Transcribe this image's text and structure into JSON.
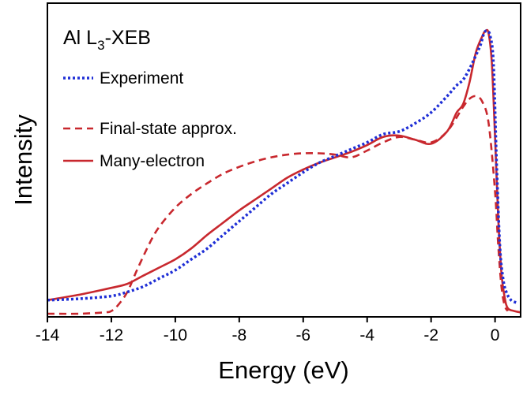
{
  "chart_data": {
    "type": "line",
    "title": "",
    "annotation": {
      "prefix": "Al L",
      "subscript": "3",
      "suffix": "-XEB"
    },
    "xlabel": "Energy (eV)",
    "ylabel": "Intensity",
    "xlim": [
      -14,
      0.8
    ],
    "ylim": [
      0,
      1.1
    ],
    "xticks": [
      -14,
      -12,
      -10,
      -8,
      -6,
      -4,
      -2,
      0
    ],
    "xtick_labels": [
      "-14",
      "-12",
      "-10",
      "-8",
      "-6",
      "-4",
      "-2",
      "0"
    ],
    "show_yticks": false,
    "grid": false,
    "legend_position": "top-left",
    "series": [
      {
        "name": "Experiment",
        "style": "dotted",
        "color": "#1f2fd6",
        "x": [
          -14,
          -13,
          -12,
          -11.5,
          -11,
          -10.5,
          -10,
          -9.5,
          -9,
          -8.5,
          -8,
          -7.5,
          -7,
          -6.5,
          -6,
          -5.5,
          -5,
          -4.5,
          -4,
          -3.5,
          -3,
          -2.5,
          -2,
          -1.5,
          -1.2,
          -1,
          -0.8,
          -0.6,
          -0.45,
          -0.35,
          -0.25,
          -0.15,
          -0.05,
          0.05,
          0.15,
          0.25,
          0.35,
          0.5,
          0.7
        ],
        "y": [
          0.05,
          0.055,
          0.065,
          0.08,
          0.1,
          0.13,
          0.16,
          0.2,
          0.24,
          0.29,
          0.34,
          0.39,
          0.44,
          0.48,
          0.52,
          0.555,
          0.58,
          0.605,
          0.63,
          0.66,
          0.67,
          0.7,
          0.74,
          0.8,
          0.84,
          0.86,
          0.9,
          0.95,
          0.99,
          1.03,
          1.04,
          1.02,
          0.92,
          0.55,
          0.25,
          0.13,
          0.08,
          0.05,
          0.04
        ]
      },
      {
        "name": "Final-state approx.",
        "style": "dashed",
        "color": "#c8282e",
        "x": [
          -14,
          -13,
          -12.2,
          -12,
          -11.8,
          -11.5,
          -11.2,
          -10.8,
          -10.5,
          -10,
          -9.5,
          -9,
          -8.5,
          -8,
          -7.5,
          -7,
          -6.5,
          -6,
          -5.5,
          -5,
          -4.5,
          -4,
          -3.5,
          -3,
          -2.5,
          -2,
          -1.5,
          -1,
          -0.8,
          -0.6,
          -0.4,
          -0.2,
          0,
          0.1,
          0.2,
          0.3,
          0.4
        ],
        "y": [
          0,
          0,
          0.005,
          0.01,
          0.03,
          0.08,
          0.16,
          0.26,
          0.32,
          0.39,
          0.44,
          0.48,
          0.515,
          0.54,
          0.56,
          0.575,
          0.585,
          0.59,
          0.59,
          0.585,
          0.575,
          0.6,
          0.63,
          0.65,
          0.64,
          0.63,
          0.67,
          0.76,
          0.79,
          0.8,
          0.78,
          0.7,
          0.45,
          0.25,
          0.1,
          0.03,
          0.01
        ]
      },
      {
        "name": "Many-electron",
        "style": "solid",
        "color": "#c8282e",
        "x": [
          -14,
          -13,
          -12,
          -11.5,
          -11,
          -10.5,
          -10,
          -9.5,
          -9,
          -8.5,
          -8,
          -7.5,
          -7,
          -6.5,
          -6,
          -5.5,
          -5,
          -4.5,
          -4,
          -3.5,
          -3,
          -2.5,
          -2,
          -1.5,
          -1.2,
          -1,
          -0.8,
          -0.6,
          -0.4,
          -0.3,
          -0.2,
          -0.1,
          0,
          0.1,
          0.2,
          0.3,
          0.4,
          0.6,
          0.8
        ],
        "y": [
          0.05,
          0.07,
          0.095,
          0.11,
          0.14,
          0.17,
          0.2,
          0.24,
          0.29,
          0.335,
          0.38,
          0.42,
          0.46,
          0.5,
          0.53,
          0.555,
          0.575,
          0.595,
          0.62,
          0.65,
          0.655,
          0.64,
          0.625,
          0.67,
          0.74,
          0.77,
          0.85,
          0.96,
          1.02,
          1.04,
          1.03,
          0.92,
          0.65,
          0.35,
          0.15,
          0.06,
          0.02,
          0.01,
          0.005
        ]
      }
    ]
  }
}
